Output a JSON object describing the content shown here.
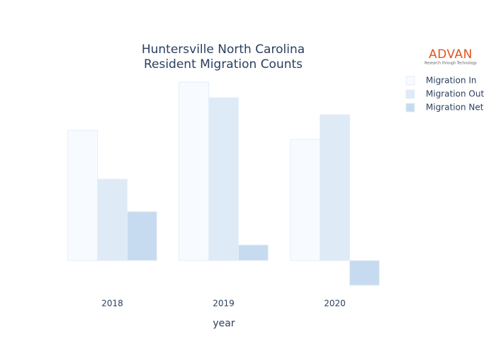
{
  "chart_data": {
    "type": "bar",
    "title": [
      "Huntersville North Carolina",
      "Resident Migration Counts"
    ],
    "x_label": "year",
    "categories": [
      "2018",
      "2019",
      "2020"
    ],
    "series": [
      {
        "name": "Migration In",
        "color": "#f7fbff",
        "values": [
          184,
          252,
          171
        ]
      },
      {
        "name": "Migration Out",
        "color": "#deebf7",
        "values": [
          115,
          230,
          206
        ]
      },
      {
        "name": "Migration Net",
        "color": "#c6dbef",
        "values": [
          69,
          22,
          -35
        ]
      }
    ],
    "ylim": [
      -52,
      268
    ],
    "legend": "top-right",
    "logo": {
      "name": "ADVAN",
      "tagline": "Research through Technology"
    }
  }
}
